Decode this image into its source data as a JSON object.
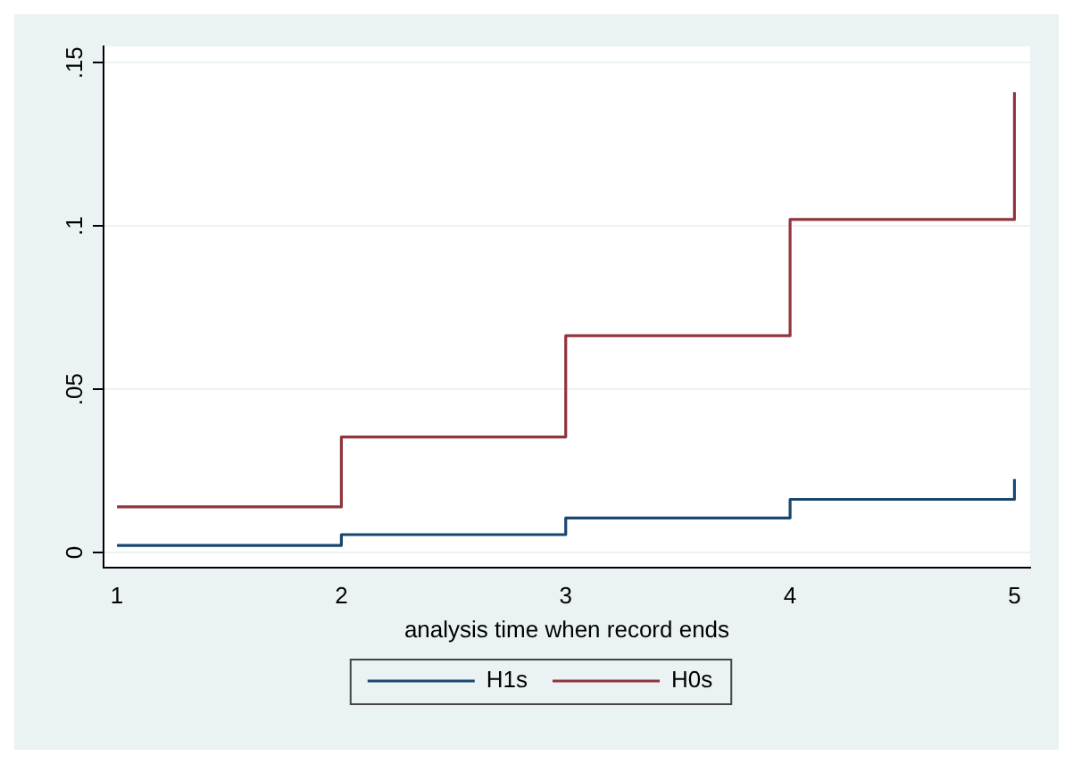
{
  "chart_data": {
    "type": "step",
    "xlabel": "analysis time when record ends",
    "x": [
      1,
      2,
      3,
      4,
      5
    ],
    "series": [
      {
        "name": "H1s",
        "color": "#1a476f",
        "values": [
          0.0022,
          0.0055,
          0.0106,
          0.0163,
          0.0225
        ]
      },
      {
        "name": "H0s",
        "color": "#90353b",
        "values": [
          0.014,
          0.0354,
          0.0664,
          0.102,
          0.141
        ]
      }
    ],
    "xlim": [
      0.94,
      5.07
    ],
    "xticks": [
      1,
      2,
      3,
      4,
      5
    ],
    "ylim": [
      -0.0045,
      0.155
    ],
    "yticks": [
      {
        "value": 0,
        "label": "0"
      },
      {
        "value": 0.05,
        "label": ".05"
      },
      {
        "value": 0.1,
        "label": ".1"
      },
      {
        "value": 0.15,
        "label": ".15"
      }
    ],
    "grid": "y",
    "legend": "bottom"
  }
}
